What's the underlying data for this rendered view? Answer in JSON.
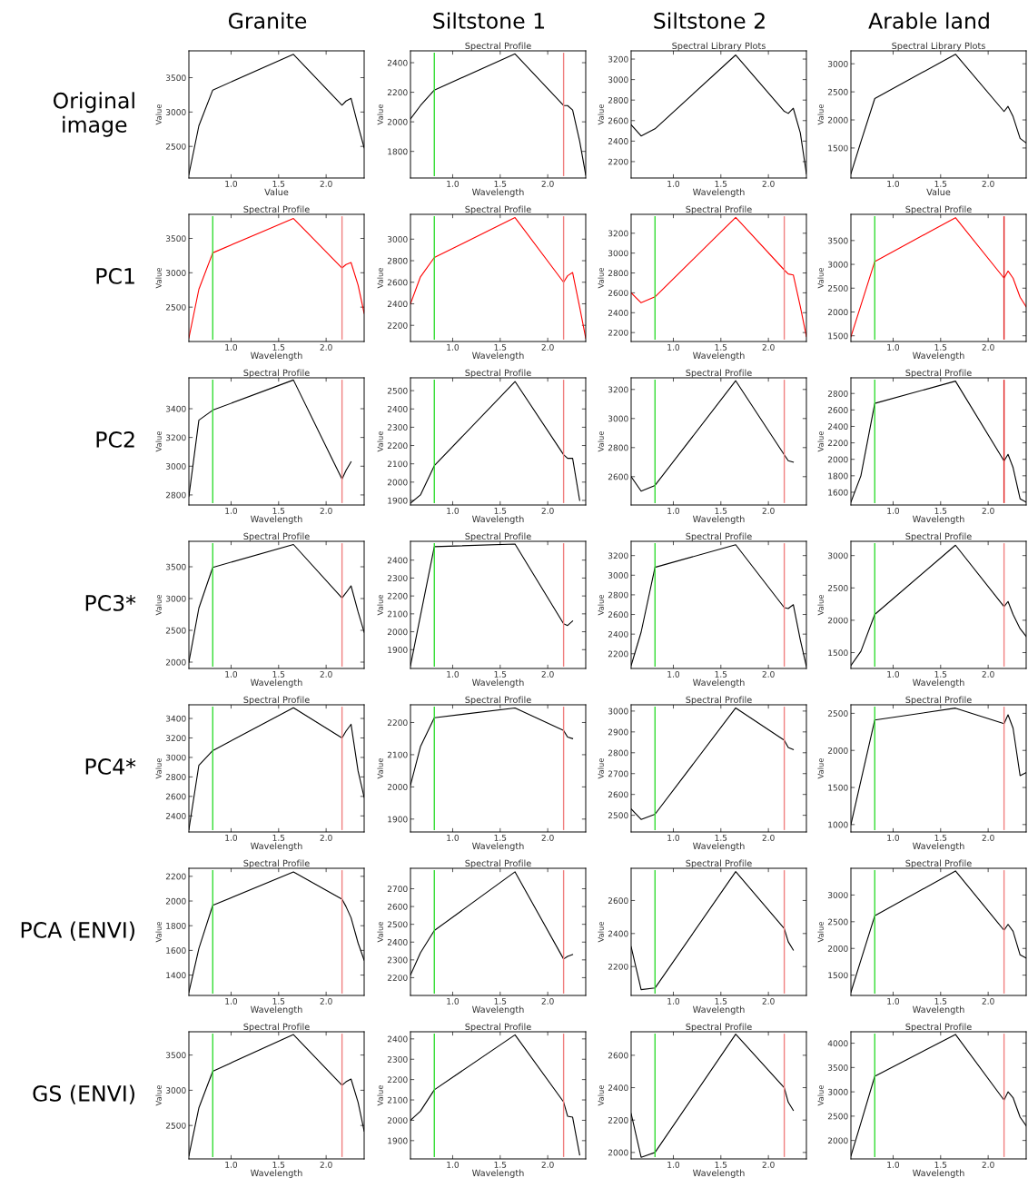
{
  "chart_data": [
    {
      "type": "line",
      "xlabel": "Value",
      "ylabel": "Value",
      "annotations": [
        "Granite",
        "Original\nimage"
      ],
      "x": [
        0.556,
        0.661,
        0.807,
        1.656,
        2.167,
        2.209,
        2.262,
        2.336,
        2.4
      ],
      "xlim": [
        0.556,
        2.4
      ],
      "xticks": [
        {
          "value": 1,
          "label": "1.0"
        },
        {
          "value": 1.5,
          "label": "1.5"
        },
        {
          "value": 2,
          "label": "2.0"
        }
      ],
      "ylim": [
        2040,
        3890
      ],
      "yticks": [
        2500,
        3000,
        3500
      ],
      "series": [
        {
          "color": "#000000",
          "values": [
            2090,
            2800,
            3320,
            3840,
            3100,
            3160,
            3200,
            2800,
            2480
          ]
        }
      ]
    },
    {
      "type": "line",
      "title": "Spectral Profile",
      "xlabel": "Wavelength",
      "ylabel": "Value",
      "annotations": [
        "Siltstone 1"
      ],
      "x": [
        0.556,
        0.661,
        0.807,
        1.656,
        2.167,
        2.209,
        2.262,
        2.336,
        2.4
      ],
      "xlim": [
        0.556,
        2.4
      ],
      "xticks": [
        {
          "value": 1,
          "label": "1.0"
        },
        {
          "value": 1.5,
          "label": "1.5"
        },
        {
          "value": 2,
          "label": "2.0"
        }
      ],
      "ylim": [
        1620,
        2480
      ],
      "yticks": [
        1800,
        2000,
        2200,
        2400
      ],
      "series": [
        {
          "color": "#000000",
          "values": [
            2020,
            2110,
            2215,
            2460,
            2110,
            2110,
            2080,
            1870,
            1640
          ]
        }
      ],
      "ref_lines": [
        {
          "axis": "x",
          "value": 0.807,
          "color": "#33dd33"
        },
        {
          "axis": "x",
          "value": 2.167,
          "color": "#f08080"
        }
      ]
    },
    {
      "type": "line",
      "title": "Spectral Library Plots",
      "xlabel": "Wavelength",
      "ylabel": "Value",
      "annotations": [
        "Siltstone 2"
      ],
      "x": [
        0.556,
        0.661,
        0.807,
        1.656,
        2.167,
        2.209,
        2.262,
        2.336,
        2.4
      ],
      "xlim": [
        0.556,
        2.4
      ],
      "xticks": [
        {
          "value": 1,
          "label": "1.0"
        },
        {
          "value": 1.5,
          "label": "1.5"
        },
        {
          "value": 2,
          "label": "2.0"
        }
      ],
      "ylim": [
        2040,
        3280
      ],
      "yticks": [
        2200,
        2400,
        2600,
        2800,
        3000,
        3200
      ],
      "series": [
        {
          "color": "#000000",
          "values": [
            2560,
            2450,
            2520,
            3240,
            2690,
            2670,
            2720,
            2480,
            2080
          ]
        }
      ]
    },
    {
      "type": "line",
      "title": "Spectral Library Plots",
      "xlabel": "Value",
      "ylabel": "Value",
      "annotations": [
        "Arable land"
      ],
      "x": [
        0.556,
        0.661,
        0.807,
        1.656,
        2.167,
        2.209,
        2.262,
        2.336,
        2.4
      ],
      "xlim": [
        0.556,
        2.4
      ],
      "xticks": [
        {
          "value": 1,
          "label": "1.0"
        },
        {
          "value": 1.5,
          "label": "1.5"
        },
        {
          "value": 2,
          "label": "2.0"
        }
      ],
      "ylim": [
        965,
        3230
      ],
      "yticks": [
        1500,
        2000,
        2500,
        3000
      ],
      "series": [
        {
          "color": "#000000",
          "values": [
            1040,
            1610,
            2380,
            3170,
            2150,
            2240,
            2060,
            1670,
            1590
          ]
        }
      ]
    },
    {
      "type": "line",
      "title": "Spectral Profile",
      "xlabel": "Wavelength",
      "ylabel": "Value",
      "annotations": [
        "PC1"
      ],
      "x": [
        0.556,
        0.661,
        0.807,
        1.656,
        2.167,
        2.209,
        2.262,
        2.336,
        2.4
      ],
      "xlim": [
        0.556,
        2.4
      ],
      "xticks": [
        {
          "value": 1,
          "label": "1.0"
        },
        {
          "value": 1.5,
          "label": "1.5"
        },
        {
          "value": 2,
          "label": "2.0"
        }
      ],
      "ylim": [
        2000,
        3850
      ],
      "yticks": [
        2500,
        3000,
        3500
      ],
      "series": [
        {
          "color": "#ff0000",
          "values": [
            2050,
            2760,
            3290,
            3790,
            3070,
            3120,
            3150,
            2820,
            2410
          ]
        }
      ],
      "ref_lines": [
        {
          "axis": "x",
          "value": 0.807,
          "color": "#33dd33"
        },
        {
          "axis": "x",
          "value": 2.167,
          "color": "#f08080"
        }
      ]
    },
    {
      "type": "line",
      "title": "Spectral Profile",
      "xlabel": "Wavelength",
      "ylabel": "Value",
      "x": [
        0.556,
        0.661,
        0.807,
        1.656,
        2.167,
        2.209,
        2.262,
        2.336,
        2.4
      ],
      "xlim": [
        0.556,
        2.4
      ],
      "xticks": [
        {
          "value": 1,
          "label": "1.0"
        },
        {
          "value": 1.5,
          "label": "1.5"
        },
        {
          "value": 2,
          "label": "2.0"
        }
      ],
      "ylim": [
        2050,
        3230
      ],
      "yticks": [
        2200,
        2400,
        2600,
        2800,
        3000
      ],
      "series": [
        {
          "color": "#ff0000",
          "values": [
            2400,
            2650,
            2830,
            3200,
            2600,
            2660,
            2690,
            2370,
            2080
          ]
        }
      ],
      "ref_lines": [
        {
          "axis": "x",
          "value": 0.807,
          "color": "#33dd33"
        },
        {
          "axis": "x",
          "value": 2.167,
          "color": "#f08080"
        }
      ]
    },
    {
      "type": "line",
      "title": "Spectral Profile",
      "xlabel": "Wavelength",
      "ylabel": "Value",
      "x": [
        0.556,
        0.661,
        0.807,
        1.656,
        2.167,
        2.209,
        2.262,
        2.336,
        2.4
      ],
      "xlim": [
        0.556,
        2.4
      ],
      "xticks": [
        {
          "value": 1,
          "label": "1.0"
        },
        {
          "value": 1.5,
          "label": "1.5"
        },
        {
          "value": 2,
          "label": "2.0"
        }
      ],
      "ylim": [
        2110,
        3390
      ],
      "yticks": [
        2200,
        2400,
        2600,
        2800,
        3000,
        3200
      ],
      "series": [
        {
          "color": "#ff0000",
          "values": [
            2600,
            2500,
            2560,
            3360,
            2830,
            2790,
            2780,
            2460,
            2160
          ]
        }
      ],
      "ref_lines": [
        {
          "axis": "x",
          "value": 0.807,
          "color": "#33dd33"
        },
        {
          "axis": "x",
          "value": 2.167,
          "color": "#f08080"
        }
      ]
    },
    {
      "type": "line",
      "title": "Spectral Profile",
      "xlabel": "Wavelength",
      "ylabel": "Value",
      "x": [
        0.556,
        0.661,
        0.807,
        1.656,
        2.167,
        2.209,
        2.262,
        2.336,
        2.4
      ],
      "xlim": [
        0.556,
        2.4
      ],
      "xticks": [
        {
          "value": 1,
          "label": "1.0"
        },
        {
          "value": 1.5,
          "label": "1.5"
        },
        {
          "value": 2,
          "label": "2.0"
        }
      ],
      "ylim": [
        1380,
        4050
      ],
      "yticks": [
        1500,
        2000,
        2500,
        3000,
        3500
      ],
      "series": [
        {
          "color": "#ff0000",
          "values": [
            1480,
            2140,
            3060,
            3980,
            2710,
            2860,
            2710,
            2310,
            2110
          ]
        }
      ],
      "ref_lines": [
        {
          "axis": "x",
          "value": 0.807,
          "color": "#33dd33"
        },
        {
          "axis": "x",
          "value": 2.167,
          "color": "#e02020"
        }
      ]
    },
    {
      "type": "line",
      "title": "Spectral Profile",
      "xlabel": "Wavelength",
      "ylabel": "Value",
      "annotations": [
        "PC2"
      ],
      "x": [
        0.556,
        0.661,
        0.807,
        1.656,
        2.167,
        2.209,
        2.262
      ],
      "xlim": [
        0.556,
        2.4
      ],
      "xticks": [
        {
          "value": 1,
          "label": "1.0"
        },
        {
          "value": 1.5,
          "label": "1.5"
        },
        {
          "value": 2,
          "label": "2.0"
        }
      ],
      "ylim": [
        2730,
        3615
      ],
      "yticks": [
        2800,
        3000,
        3200,
        3400
      ],
      "series": [
        {
          "color": "#000000",
          "values": [
            2790,
            3320,
            3390,
            3600,
            2910,
            2970,
            3030
          ]
        }
      ],
      "ref_lines": [
        {
          "axis": "x",
          "value": 0.807,
          "color": "#33dd33"
        },
        {
          "axis": "x",
          "value": 2.167,
          "color": "#f08080"
        }
      ]
    },
    {
      "type": "line",
      "title": "Spectral Profile",
      "xlabel": "Wavelength",
      "ylabel": "Value",
      "x": [
        0.556,
        0.661,
        0.807,
        1.656,
        2.167,
        2.209,
        2.262,
        2.336
      ],
      "xlim": [
        0.556,
        2.4
      ],
      "xticks": [
        {
          "value": 1,
          "label": "1.0"
        },
        {
          "value": 1.5,
          "label": "1.5"
        },
        {
          "value": 2,
          "label": "2.0"
        }
      ],
      "ylim": [
        1875,
        2570
      ],
      "yticks": [
        1900,
        2000,
        2100,
        2200,
        2300,
        2400,
        2500
      ],
      "series": [
        {
          "color": "#000000",
          "values": [
            1885,
            1930,
            2090,
            2550,
            2150,
            2130,
            2130,
            1900
          ]
        }
      ],
      "ref_lines": [
        {
          "axis": "x",
          "value": 0.807,
          "color": "#33dd33"
        },
        {
          "axis": "x",
          "value": 2.167,
          "color": "#f08080"
        }
      ]
    },
    {
      "type": "line",
      "title": "Spectral Profile",
      "xlabel": "Wavelength",
      "ylabel": "Value",
      "x": [
        0.556,
        0.661,
        0.807,
        1.656,
        2.167,
        2.209,
        2.262
      ],
      "xlim": [
        0.556,
        2.4
      ],
      "xticks": [
        {
          "value": 1,
          "label": "1.0"
        },
        {
          "value": 1.5,
          "label": "1.5"
        },
        {
          "value": 2,
          "label": "2.0"
        }
      ],
      "ylim": [
        2405,
        3280
      ],
      "yticks": [
        2600,
        2800,
        3000,
        3200
      ],
      "series": [
        {
          "color": "#000000",
          "values": [
            2600,
            2500,
            2540,
            3260,
            2750,
            2710,
            2700
          ]
        }
      ],
      "ref_lines": [
        {
          "axis": "x",
          "value": 0.807,
          "color": "#33dd33"
        },
        {
          "axis": "x",
          "value": 2.167,
          "color": "#f08080"
        }
      ]
    },
    {
      "type": "line",
      "title": "Spectral Profile",
      "xlabel": "Wavelength",
      "ylabel": "Value",
      "x": [
        0.556,
        0.661,
        0.807,
        1.656,
        2.167,
        2.209,
        2.262,
        2.336,
        2.4
      ],
      "xlim": [
        0.556,
        2.4
      ],
      "xticks": [
        {
          "value": 1,
          "label": "1.0"
        },
        {
          "value": 1.5,
          "label": "1.5"
        },
        {
          "value": 2,
          "label": "2.0"
        }
      ],
      "ylim": [
        1445,
        2990
      ],
      "yticks": [
        1600,
        1800,
        2000,
        2200,
        2400,
        2600,
        2800
      ],
      "series": [
        {
          "color": "#000000",
          "values": [
            1480,
            1800,
            2680,
            2950,
            1980,
            2060,
            1900,
            1520,
            1480
          ]
        }
      ],
      "ref_lines": [
        {
          "axis": "x",
          "value": 0.807,
          "color": "#33dd33"
        },
        {
          "axis": "x",
          "value": 2.167,
          "color": "#e02020"
        }
      ]
    },
    {
      "type": "line",
      "title": "Spectral Profile",
      "xlabel": "Wavelength",
      "ylabel": "Value",
      "annotations": [
        "PC3*"
      ],
      "x": [
        0.556,
        0.661,
        0.807,
        1.656,
        2.167,
        2.209,
        2.262,
        2.336,
        2.4
      ],
      "xlim": [
        0.556,
        2.4
      ],
      "xticks": [
        {
          "value": 1,
          "label": "1.0"
        },
        {
          "value": 1.5,
          "label": "1.5"
        },
        {
          "value": 2,
          "label": "2.0"
        }
      ],
      "ylim": [
        1900,
        3900
      ],
      "yticks": [
        2000,
        2500,
        3000,
        3500
      ],
      "series": [
        {
          "color": "#000000",
          "values": [
            2000,
            2850,
            3490,
            3850,
            3010,
            3090,
            3200,
            2790,
            2470
          ]
        }
      ],
      "ref_lines": [
        {
          "axis": "x",
          "value": 0.807,
          "color": "#33dd33"
        },
        {
          "axis": "x",
          "value": 2.167,
          "color": "#f08080"
        }
      ]
    },
    {
      "type": "line",
      "title": "Spectral Profile",
      "xlabel": "Wavelength",
      "ylabel": "Value",
      "x": [
        0.556,
        0.661,
        0.807,
        1.656,
        2.167,
        2.209,
        2.262
      ],
      "xlim": [
        0.556,
        2.4
      ],
      "xticks": [
        {
          "value": 1,
          "label": "1.0"
        },
        {
          "value": 1.5,
          "label": "1.5"
        },
        {
          "value": 2,
          "label": "2.0"
        }
      ],
      "ylim": [
        1795,
        2505
      ],
      "yticks": [
        1900,
        2000,
        2100,
        2200,
        2300,
        2400
      ],
      "series": [
        {
          "color": "#000000",
          "values": [
            1810,
            2090,
            2475,
            2490,
            2045,
            2035,
            2060
          ]
        }
      ],
      "ref_lines": [
        {
          "axis": "x",
          "value": 0.807,
          "color": "#33dd33"
        },
        {
          "axis": "x",
          "value": 2.167,
          "color": "#f08080"
        }
      ]
    },
    {
      "type": "line",
      "title": "Spectral Profile",
      "xlabel": "Wavelength",
      "ylabel": "Value",
      "x": [
        0.556,
        0.661,
        0.807,
        1.656,
        2.167,
        2.209,
        2.262,
        2.336,
        2.4
      ],
      "xlim": [
        0.556,
        2.4
      ],
      "xticks": [
        {
          "value": 1,
          "label": "1.0"
        },
        {
          "value": 1.5,
          "label": "1.5"
        },
        {
          "value": 2,
          "label": "2.0"
        }
      ],
      "ylim": [
        2050,
        3345
      ],
      "yticks": [
        2200,
        2400,
        2600,
        2800,
        3000,
        3200
      ],
      "series": [
        {
          "color": "#000000",
          "values": [
            2080,
            2420,
            3080,
            3310,
            2670,
            2660,
            2700,
            2340,
            2070
          ]
        }
      ],
      "ref_lines": [
        {
          "axis": "x",
          "value": 0.807,
          "color": "#33dd33"
        },
        {
          "axis": "x",
          "value": 2.167,
          "color": "#f08080"
        }
      ]
    },
    {
      "type": "line",
      "title": "Spectral Profile",
      "xlabel": "Wavelength",
      "ylabel": "Value",
      "x": [
        0.556,
        0.661,
        0.807,
        1.656,
        2.167,
        2.209,
        2.262,
        2.336,
        2.4
      ],
      "xlim": [
        0.556,
        2.4
      ],
      "xticks": [
        {
          "value": 1,
          "label": "1.0"
        },
        {
          "value": 1.5,
          "label": "1.5"
        },
        {
          "value": 2,
          "label": "2.0"
        }
      ],
      "ylim": [
        1255,
        3220
      ],
      "yticks": [
        1500,
        2000,
        2500,
        3000
      ],
      "series": [
        {
          "color": "#000000",
          "values": [
            1300,
            1520,
            2090,
            3160,
            2210,
            2290,
            2090,
            1870,
            1750
          ]
        }
      ],
      "ref_lines": [
        {
          "axis": "x",
          "value": 0.807,
          "color": "#33dd33"
        },
        {
          "axis": "x",
          "value": 2.167,
          "color": "#f08080"
        }
      ]
    },
    {
      "type": "line",
      "title": "Spectral Profile",
      "xlabel": "Wavelength",
      "ylabel": "Value",
      "annotations": [
        "PC4*"
      ],
      "x": [
        0.556,
        0.661,
        0.807,
        1.656,
        2.167,
        2.209,
        2.262,
        2.336,
        2.4
      ],
      "xlim": [
        0.556,
        2.4
      ],
      "xticks": [
        {
          "value": 1,
          "label": "1.0"
        },
        {
          "value": 1.5,
          "label": "1.5"
        },
        {
          "value": 2,
          "label": "2.0"
        }
      ],
      "ylim": [
        2235,
        3540
      ],
      "yticks": [
        2400,
        2600,
        2800,
        3000,
        3200,
        3400
      ],
      "series": [
        {
          "color": "#000000",
          "values": [
            2260,
            2920,
            3070,
            3510,
            3200,
            3270,
            3340,
            2860,
            2590
          ]
        }
      ],
      "ref_lines": [
        {
          "axis": "x",
          "value": 0.807,
          "color": "#33dd33"
        },
        {
          "axis": "x",
          "value": 2.167,
          "color": "#f08080"
        }
      ]
    },
    {
      "type": "line",
      "title": "Spectral Profile",
      "xlabel": "Wavelength",
      "ylabel": "Value",
      "x": [
        0.556,
        0.661,
        0.807,
        1.656,
        2.167,
        2.209,
        2.262
      ],
      "xlim": [
        0.556,
        2.4
      ],
      "xticks": [
        {
          "value": 1,
          "label": "1.0"
        },
        {
          "value": 1.5,
          "label": "1.5"
        },
        {
          "value": 2,
          "label": "2.0"
        }
      ],
      "ylim": [
        1860,
        2255
      ],
      "yticks": [
        1900,
        2000,
        2100,
        2200
      ],
      "series": [
        {
          "color": "#000000",
          "values": [
            2005,
            2125,
            2215,
            2245,
            2175,
            2155,
            2150
          ]
        }
      ],
      "ref_lines": [
        {
          "axis": "x",
          "value": 0.807,
          "color": "#33dd33"
        },
        {
          "axis": "x",
          "value": 2.167,
          "color": "#f08080"
        }
      ]
    },
    {
      "type": "line",
      "title": "Spectral Profile",
      "xlabel": "Wavelength",
      "ylabel": "Value",
      "x": [
        0.556,
        0.661,
        0.807,
        1.656,
        2.167,
        2.209,
        2.262
      ],
      "xlim": [
        0.556,
        2.4
      ],
      "xticks": [
        {
          "value": 1,
          "label": "1.0"
        },
        {
          "value": 1.5,
          "label": "1.5"
        },
        {
          "value": 2,
          "label": "2.0"
        }
      ],
      "ylim": [
        2420,
        3030
      ],
      "yticks": [
        2500,
        2600,
        2700,
        2800,
        2900,
        3000
      ],
      "series": [
        {
          "color": "#000000",
          "values": [
            2530,
            2480,
            2505,
            3015,
            2860,
            2825,
            2815
          ]
        }
      ],
      "ref_lines": [
        {
          "axis": "x",
          "value": 0.807,
          "color": "#33dd33"
        },
        {
          "axis": "x",
          "value": 2.167,
          "color": "#f08080"
        }
      ]
    },
    {
      "type": "line",
      "title": "Spectral Profile",
      "xlabel": "Wavelength",
      "ylabel": "Value",
      "x": [
        0.556,
        0.661,
        0.807,
        1.656,
        2.167,
        2.209,
        2.262,
        2.336,
        2.4
      ],
      "xlim": [
        0.556,
        2.4
      ],
      "xticks": [
        {
          "value": 1,
          "label": "1.0"
        },
        {
          "value": 1.5,
          "label": "1.5"
        },
        {
          "value": 2,
          "label": "2.0"
        }
      ],
      "ylim": [
        900,
        2615
      ],
      "yticks": [
        1000,
        1500,
        2000,
        2500
      ],
      "series": [
        {
          "color": "#000000",
          "values": [
            1000,
            1590,
            2410,
            2570,
            2360,
            2480,
            2300,
            1660,
            1700
          ]
        }
      ],
      "ref_lines": [
        {
          "axis": "x",
          "value": 0.807,
          "color": "#33dd33"
        },
        {
          "axis": "x",
          "value": 2.167,
          "color": "#f08080"
        }
      ]
    },
    {
      "type": "line",
      "title": "Spectral Profile",
      "xlabel": "Wavelength",
      "ylabel": "Value",
      "annotations": [
        "PCA (ENVI)"
      ],
      "x": [
        0.556,
        0.661,
        0.807,
        1.656,
        2.167,
        2.209,
        2.262,
        2.336,
        2.4
      ],
      "xlim": [
        0.556,
        2.4
      ],
      "xticks": [
        {
          "value": 1,
          "label": "1.0"
        },
        {
          "value": 1.5,
          "label": "1.5"
        },
        {
          "value": 2,
          "label": "2.0"
        }
      ],
      "ylim": [
        1235,
        2265
      ],
      "yticks": [
        1400,
        1600,
        1800,
        2000,
        2200
      ],
      "series": [
        {
          "color": "#000000",
          "values": [
            1260,
            1615,
            1965,
            2235,
            2015,
            1955,
            1865,
            1660,
            1520
          ]
        }
      ],
      "ref_lines": [
        {
          "axis": "x",
          "value": 0.807,
          "color": "#33dd33"
        },
        {
          "axis": "x",
          "value": 2.167,
          "color": "#f08080"
        }
      ]
    },
    {
      "type": "line",
      "title": "Spectral Profile",
      "xlabel": "Wavelength",
      "ylabel": "Value",
      "x": [
        0.556,
        0.661,
        0.807,
        1.656,
        2.167,
        2.209,
        2.262
      ],
      "xlim": [
        0.556,
        2.4
      ],
      "xticks": [
        {
          "value": 1,
          "label": "1.0"
        },
        {
          "value": 1.5,
          "label": "1.5"
        },
        {
          "value": 2,
          "label": "2.0"
        }
      ],
      "ylim": [
        2100,
        2815
      ],
      "yticks": [
        2200,
        2300,
        2400,
        2500,
        2600,
        2700
      ],
      "series": [
        {
          "color": "#000000",
          "values": [
            2215,
            2340,
            2465,
            2795,
            2305,
            2320,
            2330
          ]
        }
      ],
      "ref_lines": [
        {
          "axis": "x",
          "value": 0.807,
          "color": "#33dd33"
        },
        {
          "axis": "x",
          "value": 2.167,
          "color": "#f08080"
        }
      ]
    },
    {
      "type": "line",
      "title": "Spectral Profile",
      "xlabel": "Wavelength",
      "ylabel": "Value",
      "x": [
        0.556,
        0.661,
        0.807,
        1.656,
        2.167,
        2.209,
        2.262
      ],
      "xlim": [
        0.556,
        2.4
      ],
      "xticks": [
        {
          "value": 1,
          "label": "1.0"
        },
        {
          "value": 1.5,
          "label": "1.5"
        },
        {
          "value": 2,
          "label": "2.0"
        }
      ],
      "ylim": [
        2025,
        2795
      ],
      "yticks": [
        2200,
        2400,
        2600
      ],
      "series": [
        {
          "color": "#000000",
          "values": [
            2320,
            2060,
            2070,
            2775,
            2430,
            2350,
            2300
          ]
        }
      ],
      "ref_lines": [
        {
          "axis": "x",
          "value": 0.807,
          "color": "#33dd33"
        },
        {
          "axis": "x",
          "value": 2.167,
          "color": "#f08080"
        }
      ]
    },
    {
      "type": "line",
      "title": "Spectral Profile",
      "xlabel": "Wavelength",
      "ylabel": "Value",
      "x": [
        0.556,
        0.661,
        0.807,
        1.656,
        2.167,
        2.209,
        2.262,
        2.336,
        2.4
      ],
      "xlim": [
        0.556,
        2.4
      ],
      "xticks": [
        {
          "value": 1,
          "label": "1.0"
        },
        {
          "value": 1.5,
          "label": "1.5"
        },
        {
          "value": 2,
          "label": "2.0"
        }
      ],
      "ylim": [
        1120,
        3500
      ],
      "yticks": [
        1500,
        2000,
        2500,
        3000
      ],
      "series": [
        {
          "color": "#000000",
          "values": [
            1180,
            1780,
            2610,
            3450,
            2340,
            2450,
            2320,
            1880,
            1820
          ]
        }
      ],
      "ref_lines": [
        {
          "axis": "x",
          "value": 0.807,
          "color": "#33dd33"
        },
        {
          "axis": "x",
          "value": 2.167,
          "color": "#f08080"
        }
      ]
    },
    {
      "type": "line",
      "title": "Spectral Profile",
      "xlabel": "Wavelength",
      "ylabel": "Value",
      "annotations": [
        "GS (ENVI)"
      ],
      "x": [
        0.556,
        0.661,
        0.807,
        1.656,
        2.167,
        2.209,
        2.262,
        2.336,
        2.4
      ],
      "xlim": [
        0.556,
        2.4
      ],
      "xticks": [
        {
          "value": 1,
          "label": "1.0"
        },
        {
          "value": 1.5,
          "label": "1.5"
        },
        {
          "value": 2,
          "label": "2.0"
        }
      ],
      "ylim": [
        2025,
        3830
      ],
      "yticks": [
        2500,
        3000,
        3500
      ],
      "series": [
        {
          "color": "#000000",
          "values": [
            2070,
            2750,
            3270,
            3790,
            3070,
            3120,
            3160,
            2830,
            2420
          ]
        }
      ],
      "ref_lines": [
        {
          "axis": "x",
          "value": 0.807,
          "color": "#33dd33"
        },
        {
          "axis": "x",
          "value": 2.167,
          "color": "#f08080"
        }
      ]
    },
    {
      "type": "line",
      "title": "Spectral Profile",
      "xlabel": "Wavelength",
      "ylabel": "Value",
      "x": [
        0.556,
        0.661,
        0.807,
        1.656,
        2.167,
        2.209,
        2.262,
        2.336
      ],
      "xlim": [
        0.556,
        2.4
      ],
      "xticks": [
        {
          "value": 1,
          "label": "1.0"
        },
        {
          "value": 1.5,
          "label": "1.5"
        },
        {
          "value": 2,
          "label": "2.0"
        }
      ],
      "ylim": [
        1810,
        2435
      ],
      "yticks": [
        1900,
        2000,
        2100,
        2200,
        2300,
        2400
      ],
      "series": [
        {
          "color": "#000000",
          "values": [
            2000,
            2045,
            2150,
            2420,
            2090,
            2020,
            2015,
            1830
          ]
        }
      ],
      "ref_lines": [
        {
          "axis": "x",
          "value": 0.807,
          "color": "#33dd33"
        },
        {
          "axis": "x",
          "value": 2.167,
          "color": "#f08080"
        }
      ]
    },
    {
      "type": "line",
      "title": "Spectral Profile",
      "xlabel": "Wavelength",
      "ylabel": "Value",
      "x": [
        0.556,
        0.661,
        0.807,
        1.656,
        2.167,
        2.209,
        2.262
      ],
      "xlim": [
        0.556,
        2.4
      ],
      "xticks": [
        {
          "value": 1,
          "label": "1.0"
        },
        {
          "value": 1.5,
          "label": "1.5"
        },
        {
          "value": 2,
          "label": "2.0"
        }
      ],
      "ylim": [
        1960,
        2745
      ],
      "yticks": [
        2000,
        2200,
        2400,
        2600
      ],
      "series": [
        {
          "color": "#000000",
          "values": [
            2240,
            1970,
            2000,
            2730,
            2400,
            2310,
            2260
          ]
        }
      ],
      "ref_lines": [
        {
          "axis": "x",
          "value": 0.807,
          "color": "#33dd33"
        },
        {
          "axis": "x",
          "value": 2.167,
          "color": "#f08080"
        }
      ]
    },
    {
      "type": "line",
      "title": "Spectral Profile",
      "xlabel": "Wavelength",
      "ylabel": "Value",
      "x": [
        0.556,
        0.661,
        0.807,
        1.656,
        2.167,
        2.209,
        2.262,
        2.336,
        2.4
      ],
      "xlim": [
        0.556,
        2.4
      ],
      "xticks": [
        {
          "value": 1,
          "label": "1.0"
        },
        {
          "value": 1.5,
          "label": "1.5"
        },
        {
          "value": 2,
          "label": "2.0"
        }
      ],
      "ylim": [
        1620,
        4235
      ],
      "yticks": [
        2000,
        2500,
        3000,
        3500,
        4000
      ],
      "series": [
        {
          "color": "#000000",
          "values": [
            1680,
            2360,
            3320,
            4180,
            2830,
            3000,
            2880,
            2480,
            2300
          ]
        }
      ],
      "ref_lines": [
        {
          "axis": "x",
          "value": 0.807,
          "color": "#33dd33"
        },
        {
          "axis": "x",
          "value": 2.167,
          "color": "#f08080"
        }
      ]
    }
  ]
}
